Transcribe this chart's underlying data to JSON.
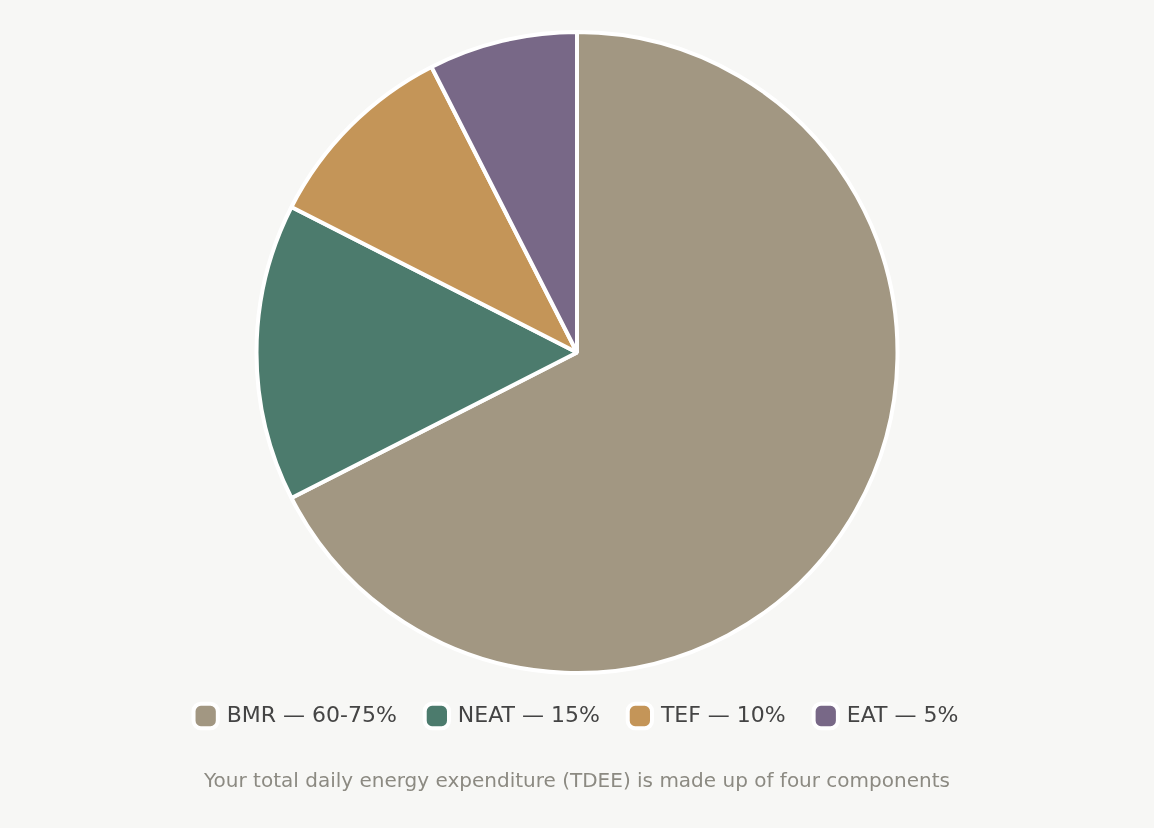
{
  "chart_data": {
    "type": "pie",
    "categories": [
      "BMR — 60-75%",
      "NEAT — 15%",
      "TEF — 10%",
      "EAT — 5%"
    ],
    "values": [
      67.5,
      15,
      10,
      7.5
    ],
    "colors": [
      "#a29782",
      "#4c7b6d",
      "#c49558",
      "#786887"
    ],
    "legend": "bottom",
    "annotations": [
      "Your total daily energy expenditure (TDEE) is made up of four components"
    ]
  }
}
